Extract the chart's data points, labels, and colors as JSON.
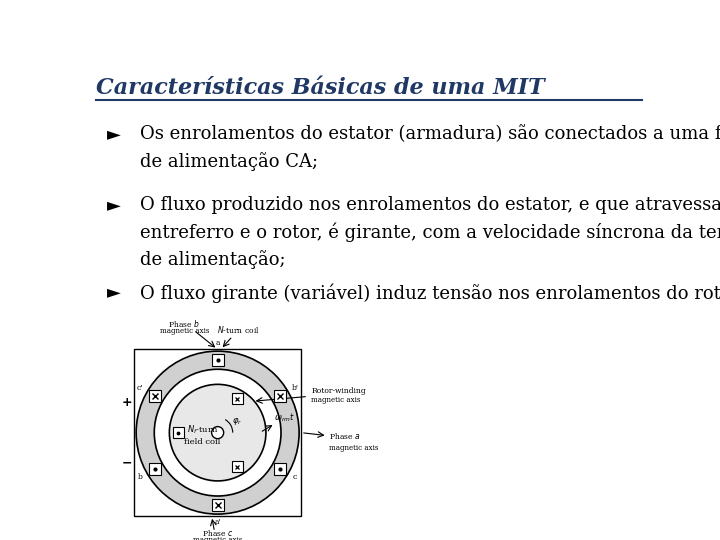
{
  "title": "Características Básicas de uma MIT",
  "title_color": "#1F3864",
  "title_underline_color": "#1F3864",
  "background_color": "#FFFFFF",
  "bullet_color": "#000000",
  "bullet_symbol": "►",
  "bullets": [
    {
      "lines": [
        "Os enrolamentos do estator (armadura) são conectados a uma fonte",
        "de alimentação CA;"
      ]
    },
    {
      "lines": [
        "O fluxo produzido nos enrolamentos do estator, e que atravessa o",
        "entreferro e o rotor, é girante, com a velocidade síncrona da tensão",
        "de alimentação;"
      ]
    },
    {
      "lines": [
        "O fluxo girante (variável) induz tensão nos enrolamentos do rotor;"
      ]
    }
  ],
  "font_size_title": 16,
  "font_size_bullet": 13,
  "title_font": "serif",
  "body_font": "serif"
}
